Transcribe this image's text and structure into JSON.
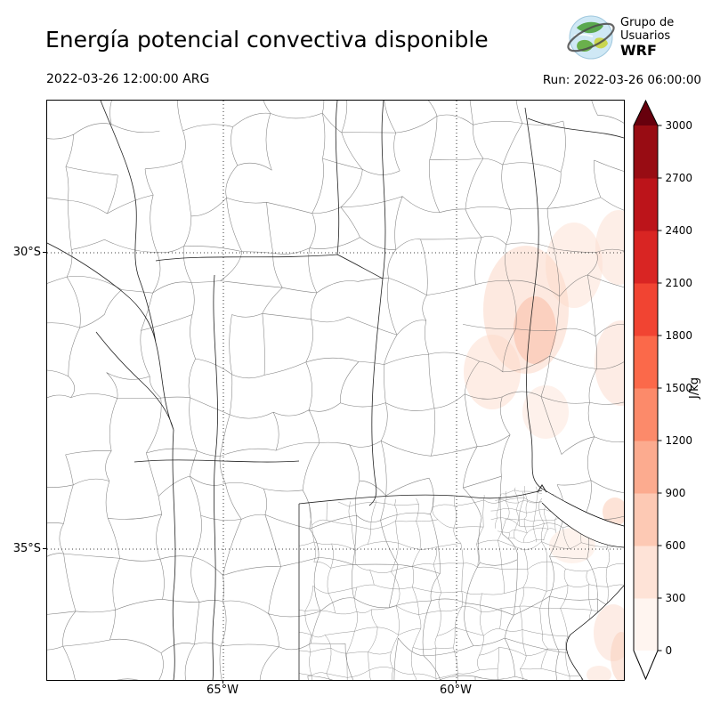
{
  "header": {
    "title": "Energía potencial convectiva disponible",
    "valid_time": "2022-03-26 12:00:00 ARG",
    "run_label": "Run: 2022-03-26 06:00:00",
    "logo": {
      "line1": "Grupo de",
      "line2": "Usuarios",
      "line3": "WRF"
    }
  },
  "map": {
    "x_tick_labels": [
      "65°W",
      "60°W"
    ],
    "y_tick_labels": [
      "30°S",
      "35°S"
    ]
  },
  "colorbar": {
    "label": "J/kg",
    "tick_labels": [
      "0",
      "300",
      "600",
      "900",
      "1200",
      "1500",
      "1800",
      "2100",
      "2400",
      "2700",
      "3000"
    ],
    "segment_colors_bottom_to_top": [
      "#fff5f0",
      "#fee3d7",
      "#fdc9b4",
      "#fcab8f",
      "#fc8a6a",
      "#fb694a",
      "#f14432",
      "#d92523",
      "#bc141a",
      "#980c13"
    ],
    "over_color": "#67000d",
    "under_color": "#ffffff"
  },
  "chart_data": {
    "type": "heatmap",
    "title": "Energía potencial convectiva disponible",
    "units": "J/kg",
    "valid_time": "2022-03-26 12:00:00 ARG",
    "run": "Run: 2022-03-26 06:00:00",
    "x_ticks": [
      "65°W",
      "60°W"
    ],
    "y_ticks": [
      "30°S",
      "35°S"
    ],
    "colorbar_ticks": [
      0,
      300,
      600,
      900,
      1200,
      1500,
      1800,
      2100,
      2400,
      2700,
      3000
    ],
    "colorbar_extend": "both",
    "legend_position": "right",
    "grid": "dotted",
    "notes": "Mostly near-zero CAPE over central Argentina; faint patches up to ~600-900 J/kg over the northeast (Entre Ríos/Corrientes) and along the southeast coast of Buenos Aires."
  }
}
